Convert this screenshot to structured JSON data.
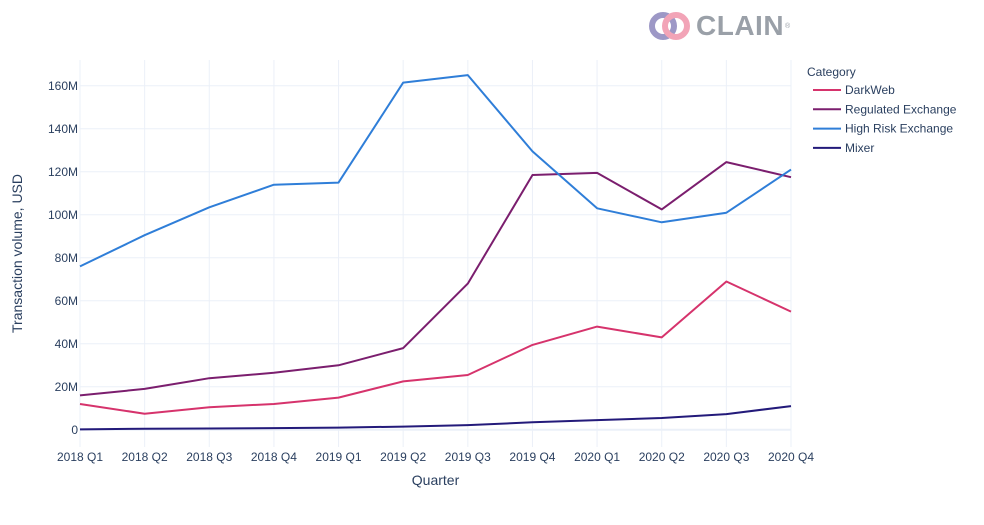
{
  "logo": {
    "text": "CLAIN",
    "mark": "®"
  },
  "chart_data": {
    "type": "line",
    "categories": [
      "2018 Q1",
      "2018 Q2",
      "2018 Q3",
      "2018 Q4",
      "2019 Q1",
      "2019 Q2",
      "2019 Q3",
      "2019 Q4",
      "2020 Q1",
      "2020 Q2",
      "2020 Q3",
      "2020 Q4"
    ],
    "xlabel": "Quarter",
    "ylabel": "Transaction volume, USD",
    "ylim": [
      -8,
      172
    ],
    "yticks": [
      0,
      20,
      40,
      60,
      80,
      100,
      120,
      140,
      160
    ],
    "ytick_labels": [
      "0",
      "20M",
      "40M",
      "60M",
      "80M",
      "100M",
      "120M",
      "140M",
      "160M"
    ],
    "grid": true,
    "legend": {
      "title": "Category",
      "position": "top-right"
    },
    "series": [
      {
        "name": "DarkWeb",
        "color": "#d6336c",
        "values": [
          12,
          7.5,
          10.5,
          12,
          15,
          22.5,
          25.5,
          39.5,
          48,
          43,
          69,
          55
        ]
      },
      {
        "name": "Regulated Exchange",
        "color": "#7b1e6e",
        "values": [
          16,
          19,
          24,
          26.5,
          30,
          38,
          68,
          118.5,
          119.5,
          102.5,
          124.5,
          117.5
        ]
      },
      {
        "name": "High Risk Exchange",
        "color": "#2f7ed8",
        "values": [
          76,
          90.5,
          103.5,
          114,
          115,
          161.5,
          165,
          129.5,
          103,
          96.5,
          101,
          121
        ]
      },
      {
        "name": "Mixer",
        "color": "#231a7a",
        "values": [
          0.2,
          0.5,
          0.6,
          0.8,
          1,
          1.5,
          2.2,
          3.5,
          4.5,
          5.5,
          7.3,
          11
        ]
      }
    ]
  }
}
